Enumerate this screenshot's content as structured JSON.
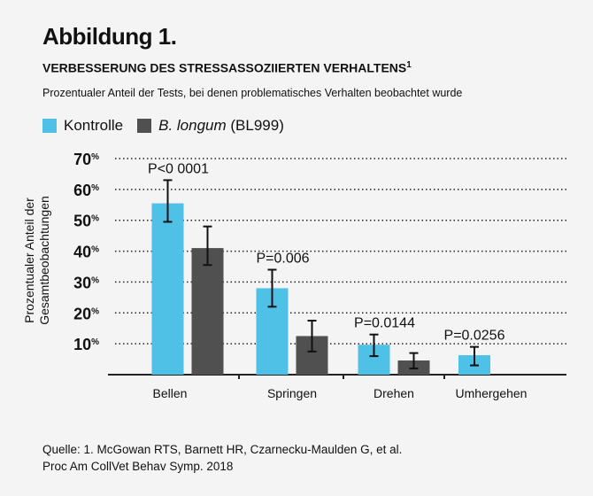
{
  "header": {
    "title": "Abbildung 1.",
    "subtitle": "VERBESSERUNG DES STRESSASSOZIIERTEN VERHALTENS",
    "subtitle_sup": "1",
    "description": "Prozentualer Anteil der Tests, bei denen problematisches Verhalten beobachtet wurde"
  },
  "legend": {
    "control": "Kontrolle",
    "treatment_italic": "B. longum",
    "treatment_rest": " (BL999)"
  },
  "colors": {
    "control": "#4fc0e6",
    "treatment": "#505050",
    "background": "#f4f4f4"
  },
  "chart_data": {
    "type": "bar",
    "ylabel_line1": "Prozentualer Anteil der",
    "ylabel_line2": "Gesamtbeobachtungen",
    "ylim": [
      0,
      70
    ],
    "yticks": [
      "10%",
      "20%",
      "30%",
      "40%",
      "50%",
      "60%",
      "70%"
    ],
    "ytick_values": [
      10,
      20,
      30,
      40,
      50,
      60,
      70
    ],
    "grid": "dotted horizontal",
    "legend_position": "top-left",
    "categories": [
      "Bellen",
      "Springen",
      "Drehen",
      "Umhergehen"
    ],
    "series": [
      {
        "name": "Kontrolle",
        "values": [
          55.5,
          28,
          9.7,
          6.3
        ],
        "err_low": [
          49.5,
          22,
          6,
          3
        ],
        "err_high": [
          63,
          34,
          13,
          9
        ]
      },
      {
        "name": "B. longum (BL999)",
        "values": [
          41,
          12.5,
          4.6,
          null
        ],
        "err_low": [
          35.5,
          7.5,
          2,
          null
        ],
        "err_high": [
          48,
          17.5,
          7,
          null
        ]
      }
    ],
    "annotations": [
      "P<0 0001",
      "P=0.006",
      "P=0.0144",
      "P=0.0256"
    ]
  },
  "source": {
    "line1": "Quelle: 1. McGowan RTS, Barnett HR, Czarnecku-Maulden G, et al.",
    "line2": "Proc Am CollVet Behav Symp. 2018"
  }
}
